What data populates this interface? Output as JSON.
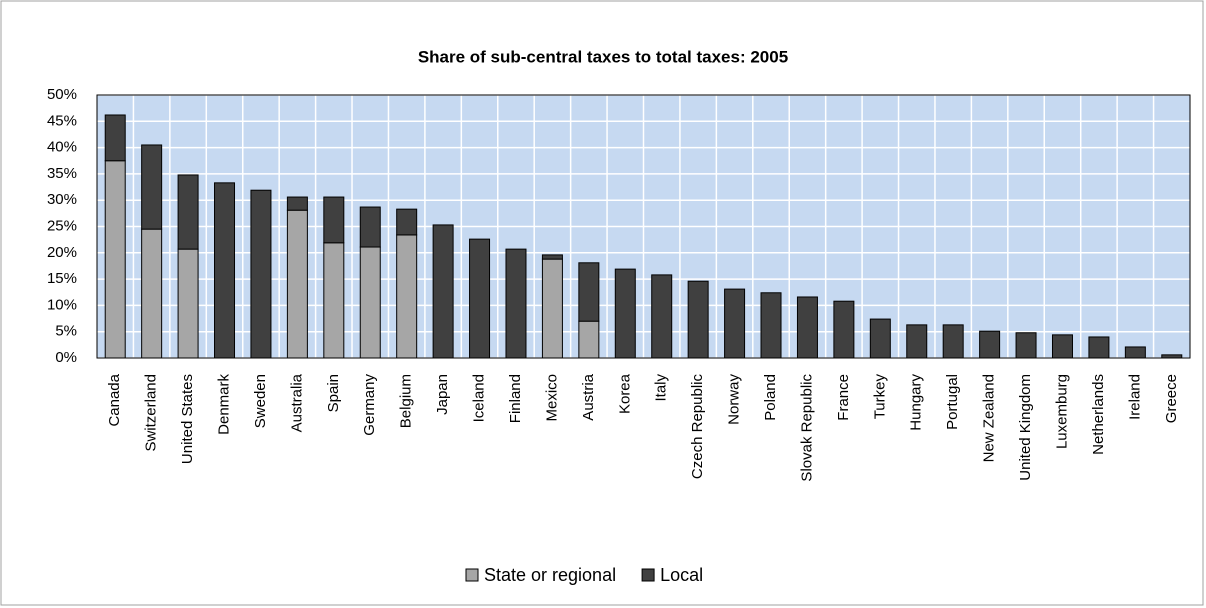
{
  "chart_data": {
    "type": "stacked_bar",
    "title": "Share of sub-central taxes to total taxes: 2005",
    "categories": [
      "Canada",
      "Switzerland",
      "United States",
      "Denmark",
      "Sweden",
      "Australia",
      "Spain",
      "Germany",
      "Belgium",
      "Japan",
      "Iceland",
      "Finland",
      "Mexico",
      "Austria",
      "Korea",
      "Italy",
      "Czech Republic",
      "Norway",
      "Poland",
      "Slovak Republic",
      "France",
      "Turkey",
      "Hungary",
      "Portugal",
      "New Zealand",
      "United Kingdom",
      "Luxemburg",
      "Netherlands",
      "Ireland",
      "Greece"
    ],
    "series": [
      {
        "name": "State or regional",
        "color": "#a6a6a6",
        "values": [
          37.5,
          24.5,
          20.7,
          0,
          0,
          28.1,
          21.9,
          21.1,
          23.4,
          0,
          0,
          0,
          18.8,
          7.0,
          0,
          0,
          0,
          0,
          0,
          0,
          0,
          0,
          0,
          0,
          0,
          0,
          0,
          0,
          0,
          0
        ]
      },
      {
        "name": "Local",
        "color": "#404040",
        "values": [
          8.7,
          16.0,
          14.1,
          33.3,
          31.9,
          2.5,
          8.7,
          7.6,
          4.9,
          25.3,
          22.6,
          20.7,
          0.8,
          11.1,
          16.9,
          15.8,
          14.6,
          13.1,
          12.4,
          11.6,
          10.8,
          7.4,
          6.3,
          6.3,
          5.1,
          4.8,
          4.4,
          4.0,
          2.1,
          0.6
        ]
      }
    ],
    "ylim": [
      0,
      50
    ],
    "yticks": [
      {
        "value": 0,
        "label": "0%"
      },
      {
        "value": 5,
        "label": "5%"
      },
      {
        "value": 10,
        "label": "10%"
      },
      {
        "value": 15,
        "label": "15%"
      },
      {
        "value": 20,
        "label": "20%"
      },
      {
        "value": 25,
        "label": "25%"
      },
      {
        "value": 30,
        "label": "30%"
      },
      {
        "value": 35,
        "label": "35%"
      },
      {
        "value": 40,
        "label": "40%"
      },
      {
        "value": 45,
        "label": "45%"
      },
      {
        "value": 50,
        "label": "50%"
      }
    ],
    "grid": true,
    "legend": "bottom",
    "background": "#c6d9f1"
  }
}
